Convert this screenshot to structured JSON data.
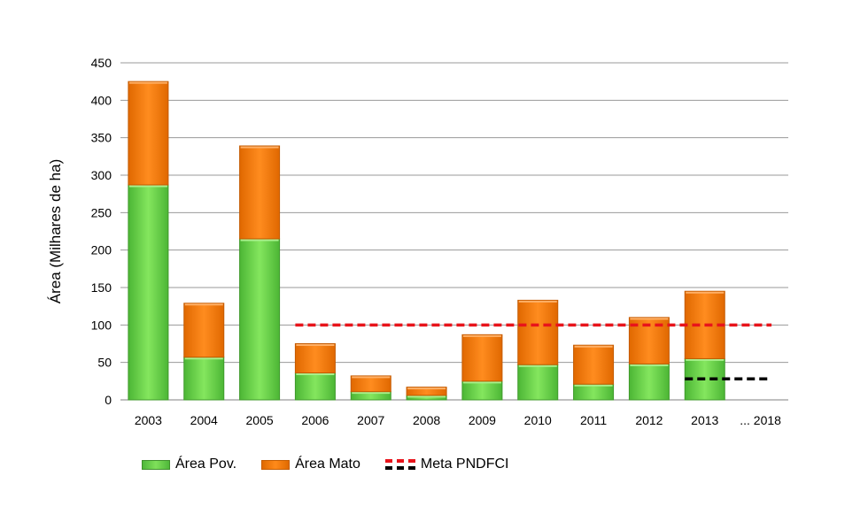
{
  "chart_data": {
    "type": "bar",
    "stacked": true,
    "categories": [
      "2003",
      "2004",
      "2005",
      "2006",
      "2007",
      "2008",
      "2009",
      "2010",
      "2011",
      "2012",
      "2013",
      "... 2018"
    ],
    "series": [
      {
        "name": "Área Pov.",
        "color": "#6fd64a",
        "values": [
          287,
          57,
          215,
          36,
          11,
          6,
          25,
          47,
          21,
          48,
          55,
          null
        ]
      },
      {
        "name": "Área Mato",
        "color": "#ff7f0e",
        "values": [
          138,
          72,
          124,
          39,
          21,
          11,
          62,
          86,
          52,
          62,
          90,
          null
        ]
      }
    ],
    "reference_lines": [
      {
        "name": "Meta PNDFCI",
        "color": "#e8141b",
        "value": 100,
        "from": "2006",
        "to": "... 2018"
      },
      {
        "name": "",
        "color": "#000000",
        "value": 28,
        "from": "2013",
        "to": "... 2018"
      }
    ],
    "ylabel": "Área (Milhares de ha)",
    "xlabel": "",
    "ylim": [
      0,
      450
    ],
    "yticks": [
      0,
      50,
      100,
      150,
      200,
      250,
      300,
      350,
      400,
      450
    ],
    "grid": true,
    "legend_position": "bottom-left"
  }
}
